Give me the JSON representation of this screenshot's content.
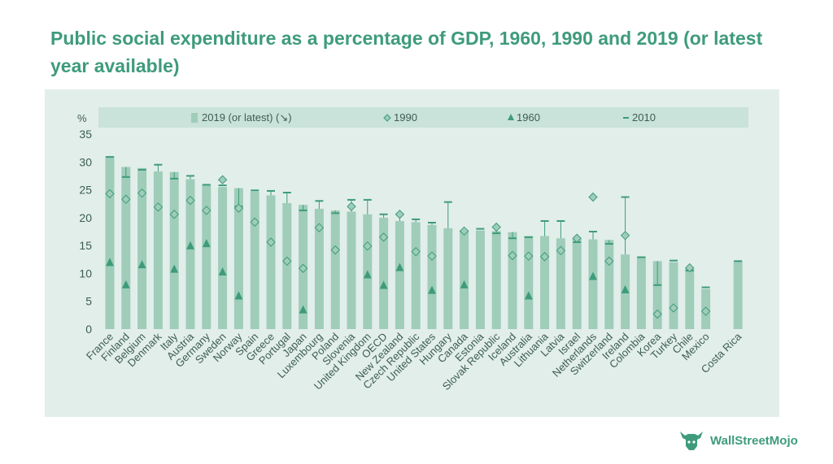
{
  "title": "Public social expenditure as a percentage of GDP, 1960, 1990 and 2019 (or latest year available)",
  "brand": "WallStreetMojo",
  "colors": {
    "title": "#3e9b7c",
    "panel": "#e2eeea",
    "legend_band": "#c9e2da",
    "bar": "#9fcdb9",
    "marker": "#3e9b7c",
    "line2010": "#3e9b7c",
    "axis_text": "#3d5d52"
  },
  "chart_data": {
    "type": "bar",
    "unit_label": "%",
    "ylim": [
      0,
      35
    ],
    "yticks": [
      0,
      5,
      10,
      15,
      20,
      25,
      30,
      35
    ],
    "grid": false,
    "legend_placement": "top",
    "legend": {
      "s2019": "2019 (or latest) (↘)",
      "s1990": "1990",
      "s1960": "1960",
      "s2010": "2010"
    },
    "categories": [
      "France",
      "Finland",
      "Belgium",
      "Denmark",
      "Italy",
      "Austria",
      "Germany",
      "Sweden",
      "Norway",
      "Spain",
      "Greece",
      "Portugal",
      "Japan",
      "Luxembourg",
      "Poland",
      "Slovenia",
      "United Kingdom",
      "OECD",
      "New Zealand",
      "Czech Republic",
      "United States",
      "Hungary",
      "Canada",
      "Estonia",
      "Slovak Republic",
      "Iceland",
      "Australia",
      "Lithuania",
      "Latvia",
      "Israel",
      "Netherlands",
      "Switzerland",
      "Ireland",
      "Colombia",
      "Korea",
      "Turkey",
      "Chile",
      "Mexico",
      "",
      "Costa Rica"
    ],
    "series": [
      {
        "name": "2019 (or latest) (↘)",
        "values": [
          31.0,
          29.1,
          28.9,
          28.3,
          28.2,
          26.9,
          25.9,
          25.5,
          25.3,
          24.7,
          24.0,
          22.6,
          22.3,
          21.6,
          21.3,
          21.1,
          20.6,
          20.0,
          19.4,
          19.2,
          18.7,
          18.1,
          17.8,
          17.7,
          17.6,
          17.4,
          16.7,
          16.7,
          16.3,
          16.3,
          16.1,
          16.0,
          13.4,
          13.0,
          12.2,
          12.0,
          10.9,
          7.2,
          null,
          12.1
        ]
      },
      {
        "name": "1990",
        "values": [
          24.3,
          23.3,
          24.4,
          21.9,
          20.6,
          23.1,
          21.3,
          26.8,
          21.7,
          19.2,
          15.6,
          12.2,
          10.9,
          18.2,
          14.2,
          22.0,
          14.9,
          16.5,
          20.6,
          13.9,
          13.1,
          null,
          17.6,
          null,
          18.3,
          13.2,
          13.1,
          13.0,
          14.1,
          16.3,
          23.7,
          12.2,
          16.8,
          null,
          2.7,
          3.8,
          11.0,
          3.2,
          null,
          null
        ]
      },
      {
        "name": "1960",
        "values": [
          11.9,
          7.9,
          11.5,
          null,
          10.7,
          14.9,
          15.3,
          10.2,
          5.9,
          null,
          null,
          null,
          3.4,
          null,
          null,
          null,
          9.7,
          7.8,
          11.0,
          null,
          6.9,
          null,
          7.9,
          null,
          null,
          null,
          5.9,
          null,
          null,
          null,
          9.4,
          null,
          7.0,
          null,
          null,
          null,
          null,
          null,
          null,
          null
        ]
      },
      {
        "name": "2010",
        "values": [
          30.9,
          27.3,
          28.6,
          29.5,
          27.0,
          27.5,
          25.9,
          25.8,
          22.0,
          24.9,
          24.8,
          24.5,
          21.3,
          23.0,
          20.8,
          23.2,
          23.2,
          20.6,
          20.6,
          19.7,
          19.1,
          22.8,
          17.5,
          18.0,
          17.2,
          16.3,
          16.5,
          19.4,
          19.4,
          15.6,
          17.5,
          15.3,
          23.7,
          12.9,
          7.9,
          12.3,
          10.5,
          7.5,
          null,
          12.2
        ]
      }
    ]
  }
}
